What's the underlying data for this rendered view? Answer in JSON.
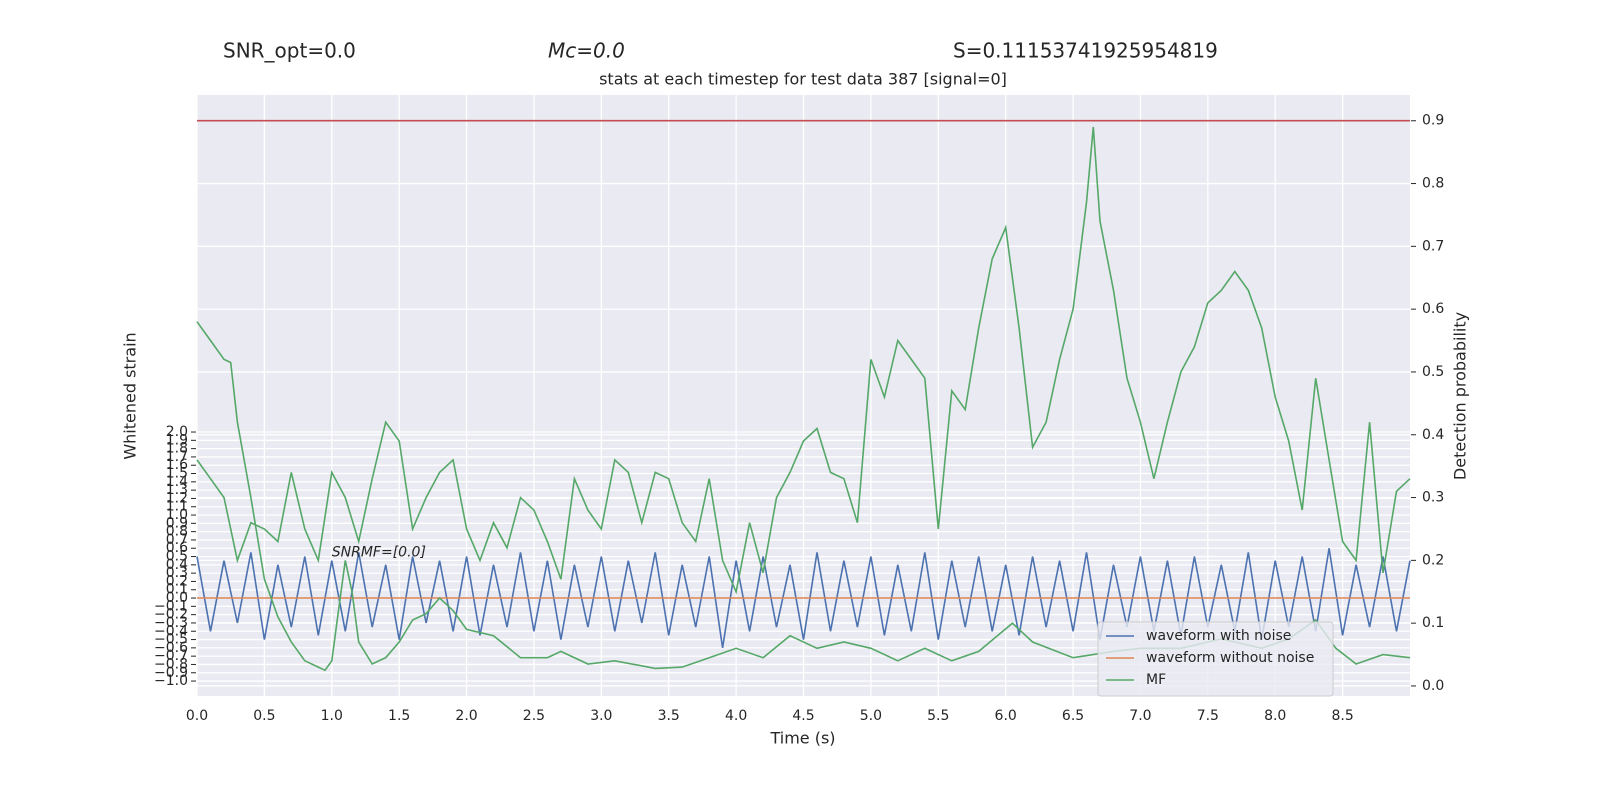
{
  "chart_data": {
    "type": "line",
    "title": "stats at each timestep for test data 387 [signal=0]",
    "stats": [
      "SNR_opt=0.0",
      "Mc=0.0",
      "S=0.11153741925954819"
    ],
    "annotation": "SNRMF=[0.0]",
    "xlabel": "Time (s)",
    "ylabel": "Whitened strain",
    "y2label": "Detection probability",
    "xlim": [
      0,
      9
    ],
    "xticks": [
      {
        "value": 0,
        "label": "0.0"
      },
      0.5,
      {
        "value": 1,
        "label": "1.0"
      },
      1.5,
      {
        "value": 2,
        "label": "2.0"
      },
      2.5,
      {
        "value": 3,
        "label": "3.0"
      },
      3.5,
      {
        "value": 4,
        "label": "4.0"
      },
      4.5,
      {
        "value": 5,
        "label": "5.0"
      },
      5.5,
      {
        "value": 6,
        "label": "6.0"
      },
      6.5,
      {
        "value": 7,
        "label": "7.0"
      },
      7.5,
      {
        "value": 8,
        "label": "8.0"
      },
      8.5
    ],
    "ylim": [
      -1.18,
      6.06
    ],
    "yticks": [
      {
        "value": -1,
        "label": "−1.0"
      },
      {
        "value": -0.9,
        "label": "−0.9"
      },
      {
        "value": -0.8,
        "label": "−0.8"
      },
      {
        "value": -0.7,
        "label": "−0.7"
      },
      {
        "value": -0.6,
        "label": "−0.6"
      },
      {
        "value": -0.5,
        "label": "−0.5"
      },
      {
        "value": -0.4,
        "label": "−0.4"
      },
      {
        "value": -0.3,
        "label": "−0.3"
      },
      {
        "value": -0.2,
        "label": "−0.2"
      },
      {
        "value": -0.1,
        "label": "−0.1"
      },
      {
        "value": 0,
        "label": "0.0"
      },
      0.1,
      0.2,
      0.3,
      0.4,
      0.5,
      0.6,
      0.7,
      0.8,
      0.9,
      {
        "value": 1,
        "label": "1.0"
      },
      1.1,
      1.2,
      1.3,
      1.4,
      1.5,
      1.6,
      1.7,
      1.8,
      1.9,
      {
        "value": 2,
        "label": "2.0"
      }
    ],
    "y2lim": [
      -0.016,
      0.941
    ],
    "y2ticks": [
      {
        "value": 0,
        "label": "0.0"
      },
      0.1,
      0.2,
      0.3,
      0.4,
      0.5,
      0.6,
      0.7,
      0.8,
      0.9
    ],
    "grid": true,
    "legend": "lower right",
    "series": [
      {
        "name": "waveform with noise",
        "color": "#4c72b0",
        "x": [
          0,
          0.1,
          0.2,
          0.3,
          0.4,
          0.5,
          0.6,
          0.7,
          0.8,
          0.9,
          1,
          1.1,
          1.2,
          1.3,
          1.4,
          1.5,
          1.6,
          1.7,
          1.8,
          1.9,
          2,
          2.1,
          2.2,
          2.3,
          2.4,
          2.5,
          2.6,
          2.7,
          2.8,
          2.9,
          3,
          3.1,
          3.2,
          3.3,
          3.4,
          3.5,
          3.6,
          3.7,
          3.8,
          3.9,
          4,
          4.1,
          4.2,
          4.3,
          4.4,
          4.5,
          4.6,
          4.7,
          4.8,
          4.9,
          5,
          5.1,
          5.2,
          5.3,
          5.4,
          5.5,
          5.6,
          5.7,
          5.8,
          5.9,
          6,
          6.1,
          6.2,
          6.3,
          6.4,
          6.5,
          6.6,
          6.7,
          6.8,
          6.9,
          7,
          7.1,
          7.2,
          7.3,
          7.4,
          7.5,
          7.6,
          7.7,
          7.8,
          7.9,
          8,
          8.1,
          8.2,
          8.3,
          8.4,
          8.5,
          8.6,
          8.7,
          8.8,
          8.9,
          9
        ],
        "values": [
          0.5,
          -0.4,
          0.45,
          -0.3,
          0.55,
          -0.5,
          0.4,
          -0.35,
          0.5,
          -0.45,
          0.45,
          -0.4,
          0.55,
          -0.35,
          0.4,
          -0.5,
          0.5,
          -0.3,
          0.45,
          -0.4,
          0.5,
          -0.45,
          0.4,
          -0.35,
          0.55,
          -0.4,
          0.45,
          -0.5,
          0.4,
          -0.35,
          0.5,
          -0.4,
          0.45,
          -0.3,
          0.55,
          -0.45,
          0.4,
          -0.35,
          0.5,
          -0.6,
          0.45,
          -0.4,
          0.5,
          -0.35,
          0.4,
          -0.5,
          0.55,
          -0.4,
          0.45,
          -0.35,
          0.5,
          -0.45,
          0.4,
          -0.4,
          0.55,
          -0.5,
          0.45,
          -0.35,
          0.5,
          -0.4,
          0.4,
          -0.45,
          0.5,
          -0.35,
          0.45,
          -0.4,
          0.55,
          -0.5,
          0.4,
          -0.35,
          0.5,
          -0.4,
          0.45,
          -0.45,
          0.5,
          -0.35,
          0.4,
          -0.4,
          0.55,
          -0.5,
          0.45,
          -0.35,
          0.5,
          -0.4,
          0.6,
          -0.45,
          0.4,
          -0.35,
          0.5,
          -0.4,
          0.45
        ]
      },
      {
        "name": "waveform without noise",
        "color": "#dd8452",
        "x": [
          0,
          9
        ],
        "values": [
          0,
          0
        ]
      },
      {
        "name": "MF",
        "color": "#55a868",
        "axis": "y2",
        "x": [
          0,
          0.1,
          0.2,
          0.25,
          0.3,
          0.4,
          0.5,
          0.6,
          0.7,
          0.8,
          0.9,
          0.95,
          1,
          1.05,
          1.1,
          1.15,
          1.2,
          1.3,
          1.4,
          1.5,
          1.6,
          1.7,
          1.8,
          1.9,
          2,
          2.2,
          2.4,
          2.6,
          2.7,
          2.9,
          3.1,
          3.4,
          3.6,
          3.8,
          4,
          4.2,
          4.4,
          4.6,
          4.8,
          5,
          5.2,
          5.4,
          5.6,
          5.8,
          6.05,
          6.2,
          6.5,
          6.8,
          7,
          7.3,
          7.6,
          7.9,
          8.1,
          8.3,
          8.45,
          8.6,
          8.8,
          9
        ],
        "values": [
          0.58,
          0.55,
          0.52,
          0.515,
          0.42,
          0.3,
          0.17,
          0.11,
          0.07,
          0.04,
          0.03,
          0.025,
          0.04,
          0.12,
          0.2,
          0.15,
          0.07,
          0.035,
          0.045,
          0.07,
          0.105,
          0.115,
          0.14,
          0.12,
          0.09,
          0.08,
          0.045,
          0.045,
          0.055,
          0.035,
          0.04,
          0.028,
          0.03,
          0.045,
          0.06,
          0.045,
          0.08,
          0.06,
          0.07,
          0.06,
          0.04,
          0.06,
          0.04,
          0.055,
          0.1,
          0.07,
          0.045,
          0.055,
          0.06,
          0.06,
          0.075,
          0.06,
          0.075,
          0.105,
          0.06,
          0.035,
          0.05,
          0.045
        ]
      },
      {
        "color": "#55a868",
        "axis": "y2",
        "x": [
          0,
          0.1,
          0.2,
          0.3,
          0.4,
          0.5,
          0.6,
          0.7,
          0.8,
          0.9,
          1,
          1.1,
          1.2,
          1.3,
          1.4,
          1.5,
          1.6,
          1.7,
          1.8,
          1.9,
          2,
          2.1,
          2.2,
          2.3,
          2.4,
          2.5,
          2.6,
          2.7,
          2.8,
          2.9,
          3,
          3.1,
          3.2,
          3.3,
          3.4,
          3.5,
          3.6,
          3.7,
          3.8,
          3.9,
          4,
          4.1,
          4.2,
          4.3,
          4.4,
          4.5,
          4.6,
          4.7,
          4.8,
          4.9,
          5,
          5.1,
          5.2,
          5.3,
          5.4,
          5.5,
          5.6,
          5.7,
          5.8,
          5.9,
          6,
          6.1,
          6.2,
          6.3,
          6.4,
          6.5,
          6.6,
          6.65,
          6.7,
          6.8,
          6.9,
          7,
          7.1,
          7.2,
          7.3,
          7.4,
          7.5,
          7.6,
          7.7,
          7.8,
          7.9,
          8,
          8.1,
          8.2,
          8.3,
          8.4,
          8.5,
          8.6,
          8.7,
          8.8,
          8.9,
          9
        ],
        "values": [
          0.36,
          0.33,
          0.3,
          0.2,
          0.26,
          0.25,
          0.23,
          0.34,
          0.25,
          0.2,
          0.34,
          0.3,
          0.23,
          0.33,
          0.42,
          0.39,
          0.25,
          0.3,
          0.34,
          0.36,
          0.25,
          0.2,
          0.26,
          0.22,
          0.3,
          0.28,
          0.23,
          0.17,
          0.33,
          0.28,
          0.25,
          0.36,
          0.34,
          0.26,
          0.34,
          0.33,
          0.26,
          0.23,
          0.33,
          0.2,
          0.15,
          0.26,
          0.18,
          0.3,
          0.34,
          0.39,
          0.41,
          0.34,
          0.33,
          0.26,
          0.52,
          0.46,
          0.55,
          0.52,
          0.49,
          0.25,
          0.47,
          0.44,
          0.57,
          0.68,
          0.73,
          0.57,
          0.38,
          0.42,
          0.52,
          0.6,
          0.77,
          0.89,
          0.74,
          0.63,
          0.49,
          0.42,
          0.33,
          0.42,
          0.5,
          0.54,
          0.61,
          0.63,
          0.66,
          0.63,
          0.57,
          0.46,
          0.39,
          0.28,
          0.49,
          0.36,
          0.23,
          0.2,
          0.42,
          0.18,
          0.31,
          0.33
        ]
      },
      {
        "color": "#c44e52",
        "axis": "y2",
        "x": [
          0,
          9
        ],
        "values": [
          0.9,
          0.9
        ]
      }
    ]
  }
}
